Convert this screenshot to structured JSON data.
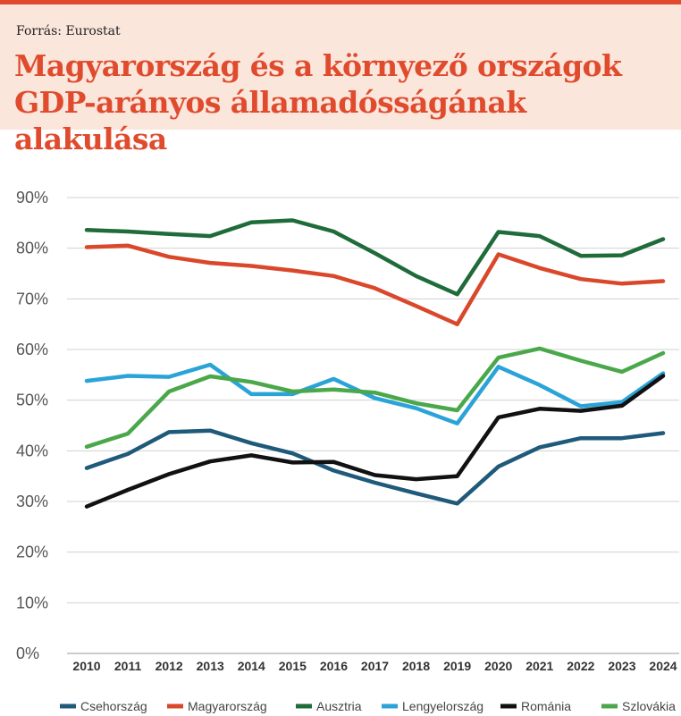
{
  "header": {
    "source": "Forrás: Eurostat",
    "title_line1": "Magyarország és a környező országok",
    "title_line2": "GDP-arányos államadósságának alakulása"
  },
  "chart_data": {
    "type": "line",
    "title": "Magyarország és a környező országok GDP-arányos államadósságának alakulása",
    "x": [
      "2010",
      "2011",
      "2012",
      "2013",
      "2014",
      "2015",
      "2016",
      "2017",
      "2018",
      "2019",
      "2020",
      "2021",
      "2022",
      "2023",
      "2024"
    ],
    "yticks": [
      "0%",
      "10%",
      "20%",
      "30%",
      "40%",
      "50%",
      "60%",
      "70%",
      "80%",
      "90%"
    ],
    "ylim": [
      0,
      90
    ],
    "grid": true,
    "legend_position": "bottom",
    "series": [
      {
        "name": "Csehország",
        "color": "#1f5a7a",
        "values": [
          36.6,
          39.4,
          43.7,
          44.0,
          41.5,
          39.5,
          36.1,
          33.7,
          31.6,
          29.6,
          36.9,
          40.7,
          42.5,
          42.5,
          43.5
        ]
      },
      {
        "name": "Magyarország",
        "color": "#d9482b",
        "values": [
          80.2,
          80.5,
          78.3,
          77.1,
          76.5,
          75.6,
          74.5,
          72.1,
          68.6,
          65.0,
          78.8,
          76.1,
          73.9,
          73.0,
          73.5
        ]
      },
      {
        "name": "Ausztria",
        "color": "#1f6b3a",
        "values": [
          83.6,
          83.3,
          82.8,
          82.4,
          85.1,
          85.5,
          83.3,
          79.0,
          74.5,
          70.9,
          83.2,
          82.4,
          78.5,
          78.6,
          81.8
        ]
      },
      {
        "name": "Lengyelország",
        "color": "#2aa3d8",
        "values": [
          53.8,
          54.8,
          54.6,
          57.0,
          51.2,
          51.2,
          54.2,
          50.4,
          48.4,
          45.4,
          56.6,
          53.0,
          48.8,
          49.6,
          55.3
        ]
      },
      {
        "name": "Románia",
        "color": "#111111",
        "values": [
          29.0,
          32.3,
          35.4,
          37.9,
          39.1,
          37.7,
          37.8,
          35.2,
          34.4,
          35.0,
          46.6,
          48.3,
          47.9,
          48.9,
          54.8
        ]
      },
      {
        "name": "Szlovákia",
        "color": "#4aa84a",
        "values": [
          40.8,
          43.4,
          51.7,
          54.7,
          53.6,
          51.7,
          52.1,
          51.5,
          49.4,
          48.0,
          58.4,
          60.2,
          57.8,
          55.6,
          59.3
        ]
      }
    ]
  }
}
